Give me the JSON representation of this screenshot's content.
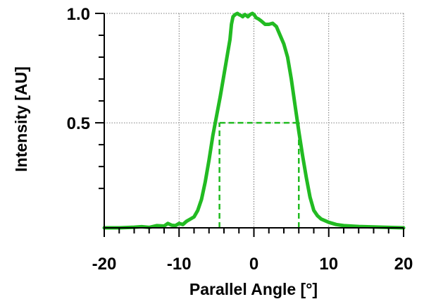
{
  "chart_data": {
    "type": "line",
    "title": "",
    "xlabel": "Parallel Angle [°]",
    "ylabel": "Intensity [AU]",
    "xlim": [
      -20,
      20
    ],
    "ylim": [
      0.02,
      1.0
    ],
    "xticks": [
      -20,
      -10,
      0,
      10,
      20
    ],
    "xtick_labels": [
      "-20",
      "-10",
      "0",
      "10",
      "20"
    ],
    "yticks": [
      0.5,
      1.0
    ],
    "ytick_labels": [
      "0.5",
      "1.0"
    ],
    "x_minor_step": 2,
    "y_minor_ticks": [
      0.2,
      0.3,
      0.4,
      0.6,
      0.7,
      0.8,
      0.9
    ],
    "grid": true,
    "line_color": "#22bb22",
    "series": [
      {
        "name": "",
        "x": [
          -20,
          -18,
          -16,
          -15,
          -14,
          -13,
          -12,
          -11.5,
          -11,
          -10.5,
          -10,
          -9.5,
          -9,
          -8.5,
          -8,
          -7.5,
          -7,
          -6.5,
          -6,
          -5.5,
          -5,
          -4.5,
          -4,
          -3.5,
          -3.2,
          -3,
          -2.8,
          -2.5,
          -2.2,
          -2,
          -1.7,
          -1.5,
          -1.2,
          -1,
          -0.8,
          -0.5,
          -0.2,
          0,
          0.3,
          0.6,
          1,
          1.5,
          2,
          2.5,
          3,
          3.5,
          4,
          4.5,
          5,
          5.5,
          6,
          6.5,
          7,
          7.5,
          8,
          8.5,
          9,
          10,
          11,
          12,
          14,
          16,
          18,
          20
        ],
        "y": [
          0.02,
          0.02,
          0.023,
          0.025,
          0.022,
          0.03,
          0.028,
          0.04,
          0.032,
          0.03,
          0.04,
          0.035,
          0.05,
          0.06,
          0.07,
          0.1,
          0.15,
          0.23,
          0.33,
          0.44,
          0.53,
          0.62,
          0.72,
          0.82,
          0.88,
          0.95,
          0.985,
          0.995,
          1.0,
          0.995,
          0.99,
          0.985,
          0.995,
          0.99,
          0.985,
          0.995,
          1.0,
          0.995,
          0.98,
          0.975,
          0.965,
          0.95,
          0.95,
          0.955,
          0.94,
          0.9,
          0.86,
          0.8,
          0.7,
          0.58,
          0.46,
          0.35,
          0.25,
          0.16,
          0.1,
          0.075,
          0.06,
          0.045,
          0.035,
          0.03,
          0.026,
          0.024,
          0.022,
          0.02
        ]
      }
    ],
    "annotations": [
      {
        "kind": "dashed-horizontal",
        "y": 0.5,
        "x_from": -4.6,
        "x_to": 6.0
      },
      {
        "kind": "dashed-vertical",
        "x": -4.6,
        "y_from": 0.02,
        "y_to": 0.5
      },
      {
        "kind": "dashed-vertical",
        "x": 6.0,
        "y_from": 0.02,
        "y_to": 0.5
      }
    ]
  }
}
